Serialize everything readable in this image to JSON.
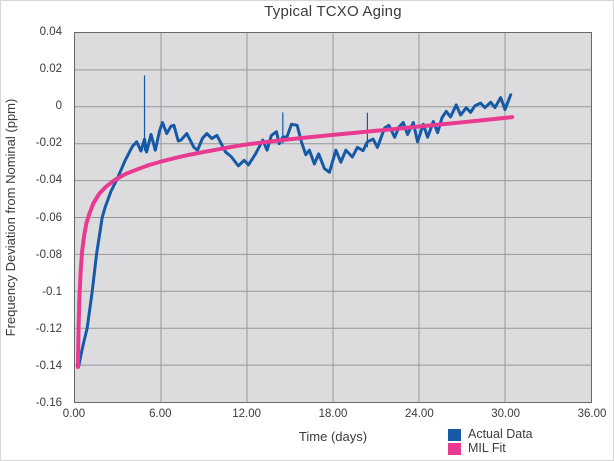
{
  "chart_data": {
    "type": "line",
    "title": "Typical TCXO Aging",
    "xlabel": "Time (days)",
    "ylabel": "Frequency Deviation from Nominal (ppm)",
    "xlim": [
      0,
      36
    ],
    "ylim": [
      -0.16,
      0.04
    ],
    "grid": true,
    "plot_bg": "#dcdcde",
    "grid_color": "#97979b",
    "border_color": "#68686c",
    "legend_position": "bottom-right",
    "x_ticks": [
      {
        "v": 0,
        "label": "0.00"
      },
      {
        "v": 6,
        "label": "6.00"
      },
      {
        "v": 12,
        "label": "12.00"
      },
      {
        "v": 18,
        "label": "18.00"
      },
      {
        "v": 24,
        "label": "24.00"
      },
      {
        "v": 30,
        "label": "30.00"
      },
      {
        "v": 36,
        "label": "36.00"
      }
    ],
    "y_ticks": [
      {
        "v": 0.04,
        "label": "0.04"
      },
      {
        "v": 0.02,
        "label": "0.02"
      },
      {
        "v": 0,
        "label": "0"
      },
      {
        "v": -0.02,
        "label": "-0.02"
      },
      {
        "v": -0.04,
        "label": "-0.04"
      },
      {
        "v": -0.06,
        "label": "-0.06"
      },
      {
        "v": -0.08,
        "label": "-0.08"
      },
      {
        "v": -0.1,
        "label": "-0.1"
      },
      {
        "v": -0.12,
        "label": "-0.12"
      },
      {
        "v": -0.14,
        "label": "-0.14"
      },
      {
        "v": -0.16,
        "label": "-0.16"
      }
    ],
    "series": [
      {
        "name": "Actual Data",
        "color": "#1659a7",
        "stroke_width": 3,
        "points": [
          [
            0.25,
            -0.141
          ],
          [
            0.4,
            -0.135
          ],
          [
            0.6,
            -0.128
          ],
          [
            0.85,
            -0.12
          ],
          [
            1.2,
            -0.1
          ],
          [
            1.5,
            -0.08
          ],
          [
            1.9,
            -0.06
          ],
          [
            2.1,
            -0.0545
          ],
          [
            2.5,
            -0.046
          ],
          [
            3.0,
            -0.038
          ],
          [
            3.5,
            -0.029
          ],
          [
            4.0,
            -0.0215
          ],
          [
            4.3,
            -0.019
          ],
          [
            4.6,
            -0.024
          ],
          [
            4.85,
            -0.0175
          ],
          [
            5.0,
            -0.0245
          ],
          [
            5.3,
            -0.015
          ],
          [
            5.6,
            -0.0235
          ],
          [
            5.9,
            -0.013
          ],
          [
            6.1,
            -0.0085
          ],
          [
            6.4,
            -0.0145
          ],
          [
            6.7,
            -0.0105
          ],
          [
            6.9,
            -0.01
          ],
          [
            7.2,
            -0.0185
          ],
          [
            7.4,
            -0.018
          ],
          [
            7.8,
            -0.0145
          ],
          [
            8.3,
            -0.022
          ],
          [
            8.55,
            -0.0235
          ],
          [
            8.9,
            -0.017
          ],
          [
            9.2,
            -0.0145
          ],
          [
            9.55,
            -0.0172
          ],
          [
            9.9,
            -0.0155
          ],
          [
            10.5,
            -0.0245
          ],
          [
            10.9,
            -0.027
          ],
          [
            11.4,
            -0.032
          ],
          [
            11.8,
            -0.029
          ],
          [
            12.1,
            -0.0315
          ],
          [
            12.6,
            -0.0255
          ],
          [
            13.1,
            -0.018
          ],
          [
            13.4,
            -0.0235
          ],
          [
            13.7,
            -0.0155
          ],
          [
            14.05,
            -0.0135
          ],
          [
            14.25,
            -0.02
          ],
          [
            14.5,
            -0.0165
          ],
          [
            14.8,
            -0.016
          ],
          [
            15.1,
            -0.0095
          ],
          [
            15.5,
            -0.01
          ],
          [
            15.8,
            -0.019
          ],
          [
            16.1,
            -0.026
          ],
          [
            16.35,
            -0.0235
          ],
          [
            16.7,
            -0.031
          ],
          [
            17.0,
            -0.0255
          ],
          [
            17.4,
            -0.0335
          ],
          [
            17.75,
            -0.0355
          ],
          [
            18.2,
            -0.0235
          ],
          [
            18.55,
            -0.03
          ],
          [
            18.9,
            -0.0235
          ],
          [
            19.35,
            -0.0272
          ],
          [
            19.7,
            -0.022
          ],
          [
            20.1,
            -0.0238
          ],
          [
            20.4,
            -0.019
          ],
          [
            20.8,
            -0.0175
          ],
          [
            21.1,
            -0.022
          ],
          [
            21.6,
            -0.0115
          ],
          [
            21.9,
            -0.01
          ],
          [
            22.3,
            -0.0165
          ],
          [
            22.6,
            -0.011
          ],
          [
            22.9,
            -0.0085
          ],
          [
            23.2,
            -0.015
          ],
          [
            23.6,
            -0.0085
          ],
          [
            23.9,
            -0.019
          ],
          [
            24.3,
            -0.0095
          ],
          [
            24.6,
            -0.0165
          ],
          [
            25.0,
            -0.008
          ],
          [
            25.3,
            -0.014
          ],
          [
            25.6,
            -0.006
          ],
          [
            25.9,
            -0.0025
          ],
          [
            26.2,
            -0.0055
          ],
          [
            26.6,
            0.001
          ],
          [
            26.9,
            -0.0045
          ],
          [
            27.3,
            -0.0005
          ],
          [
            27.6,
            -0.003
          ],
          [
            27.9,
            0.0005
          ],
          [
            28.3,
            0.002
          ],
          [
            28.6,
            -0.0005
          ],
          [
            29.0,
            0.0025
          ],
          [
            29.3,
            -0.0005
          ],
          [
            29.7,
            0.005
          ],
          [
            30.0,
            -0.0015
          ],
          [
            30.4,
            0.0065
          ]
        ]
      },
      {
        "name": "MIL Fit",
        "color": "#e83a90",
        "stroke_width": 4,
        "points": [
          [
            0.2,
            -0.141
          ],
          [
            0.25,
            -0.12
          ],
          [
            0.3,
            -0.105
          ],
          [
            0.4,
            -0.088
          ],
          [
            0.5,
            -0.078
          ],
          [
            0.65,
            -0.069
          ],
          [
            0.8,
            -0.063
          ],
          [
            1.0,
            -0.058
          ],
          [
            1.3,
            -0.052
          ],
          [
            1.7,
            -0.047
          ],
          [
            2.2,
            -0.043
          ],
          [
            2.8,
            -0.0395
          ],
          [
            3.5,
            -0.0365
          ],
          [
            4.3,
            -0.034
          ],
          [
            5.2,
            -0.0315
          ],
          [
            6.0,
            -0.0297
          ],
          [
            7.0,
            -0.0277
          ],
          [
            8.0,
            -0.026
          ],
          [
            9.0,
            -0.0245
          ],
          [
            10.0,
            -0.023
          ],
          [
            11.0,
            -0.0216
          ],
          [
            12.0,
            -0.0204
          ],
          [
            13.5,
            -0.0189
          ],
          [
            15.0,
            -0.0176
          ],
          [
            16.5,
            -0.0164
          ],
          [
            18.0,
            -0.0152
          ],
          [
            19.5,
            -0.0141
          ],
          [
            21.0,
            -0.013
          ],
          [
            22.5,
            -0.0119
          ],
          [
            24.0,
            -0.0107
          ],
          [
            25.5,
            -0.0096
          ],
          [
            27.0,
            -0.0084
          ],
          [
            28.5,
            -0.0072
          ],
          [
            30.0,
            -0.006
          ],
          [
            30.5,
            -0.0056
          ]
        ]
      }
    ],
    "spikes": {
      "color": "#1659a7",
      "stroke_width": 1.2,
      "lines": [
        [
          4.85,
          -0.024,
          0.017
        ],
        [
          14.5,
          -0.02,
          -0.003
        ],
        [
          20.4,
          -0.022,
          -0.0032
        ]
      ]
    }
  },
  "legend": {
    "items": [
      {
        "label": "Actual Data",
        "color": "#1659a7"
      },
      {
        "label": "MIL Fit",
        "color": "#e83a90"
      }
    ]
  }
}
